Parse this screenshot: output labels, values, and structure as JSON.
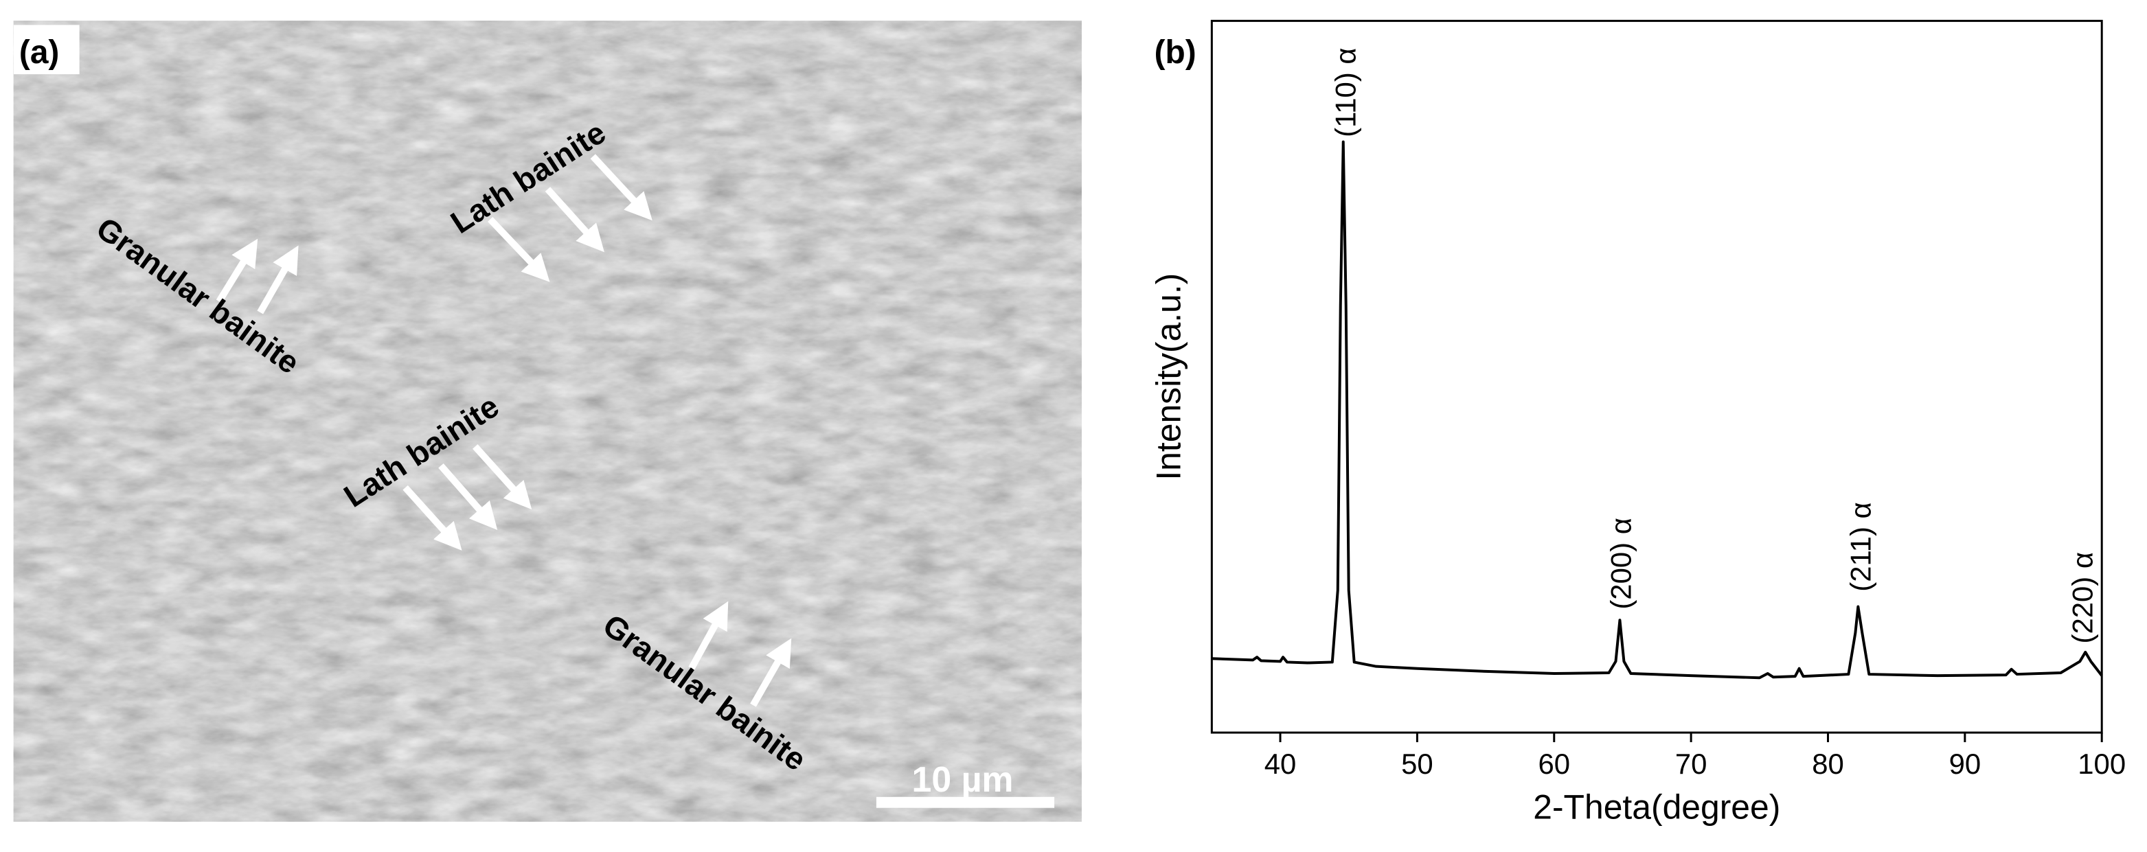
{
  "micrograph": {
    "panel_label": "(a)",
    "labels": [
      "Granular bainite",
      "Lath bainite",
      "Lath bainite",
      "Granular bainite"
    ],
    "scale_bar": "10 µm"
  },
  "chart_data": {
    "type": "line",
    "panel_label": "(b)",
    "xlabel": "2-Theta(degree)",
    "ylabel": "Intensity(a.u.)",
    "x": [
      35,
      38,
      38.3,
      38.6,
      40,
      40.2,
      40.5,
      42,
      43.8,
      44.2,
      44.4,
      44.6,
      44.8,
      45.0,
      45.4,
      47,
      50,
      55,
      60,
      64,
      64.5,
      64.8,
      65.1,
      65.6,
      70,
      75,
      75.6,
      76,
      77.6,
      77.9,
      78.2,
      81.5,
      82,
      82.2,
      82.5,
      83,
      88,
      93,
      93.4,
      93.8,
      97,
      98.4,
      98.8,
      99.2,
      100
    ],
    "series": [
      {
        "color": "#000000",
        "values": [
          10.4,
          10.2,
          10.6,
          10.1,
          10.0,
          10.6,
          9.9,
          9.8,
          9.9,
          20,
          60,
          83,
          60,
          20,
          9.9,
          9.3,
          9.0,
          8.6,
          8.3,
          8.4,
          10,
          15.8,
          10,
          8.3,
          8.0,
          7.7,
          8.3,
          7.8,
          7.9,
          9.0,
          7.9,
          8.2,
          14,
          17.7,
          14,
          8.2,
          8.0,
          8.1,
          8.9,
          8.2,
          8.4,
          10,
          11.3,
          10,
          8.0
        ]
      }
    ],
    "xlim": [
      35,
      100
    ],
    "xticks": [
      40,
      50,
      60,
      70,
      80,
      90,
      100
    ],
    "ylim": [
      0,
      100
    ],
    "annotations": [
      "(110) α",
      "(200) α",
      "(211) α",
      "(220) α"
    ]
  }
}
